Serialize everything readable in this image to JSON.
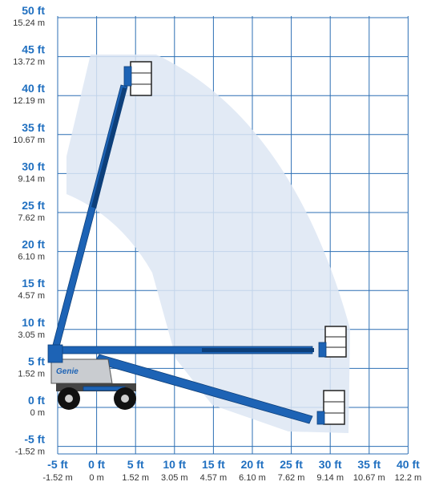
{
  "colors": {
    "grid": "#2c6fb4",
    "envelope": "#dde6f3",
    "boom": "#1d63b5",
    "boom_edge": "#0d3f7a",
    "chassis": "#c9ccd0",
    "tire": "#111111",
    "platform": "#ffffff"
  },
  "y_axis": {
    "ticks": [
      {
        "ft": "50 ft",
        "m": "15.24 m"
      },
      {
        "ft": "45 ft",
        "m": "13.72 m"
      },
      {
        "ft": "40 ft",
        "m": "12.19 m"
      },
      {
        "ft": "35 ft",
        "m": "10.67 m"
      },
      {
        "ft": "30 ft",
        "m": "9.14 m"
      },
      {
        "ft": "25 ft",
        "m": "7.62 m"
      },
      {
        "ft": "20 ft",
        "m": "6.10 m"
      },
      {
        "ft": "15 ft",
        "m": "4.57 m"
      },
      {
        "ft": "10 ft",
        "m": "3.05 m"
      },
      {
        "ft": "5 ft",
        "m": "1.52 m"
      },
      {
        "ft": "0 ft",
        "m": "0 m"
      },
      {
        "ft": "-5 ft",
        "m": "-1.52 m"
      }
    ]
  },
  "x_axis": {
    "ticks": [
      {
        "ft": "-5 ft",
        "m": "-1.52 m"
      },
      {
        "ft": "0 ft",
        "m": "0 m"
      },
      {
        "ft": "5 ft",
        "m": "1.52 m"
      },
      {
        "ft": "10 ft",
        "m": "3.05 m"
      },
      {
        "ft": "15 ft",
        "m": "4.57 m"
      },
      {
        "ft": "20 ft",
        "m": "6.10 m"
      },
      {
        "ft": "25 ft",
        "m": "7.62 m"
      },
      {
        "ft": "30 ft",
        "m": "9.14 m"
      },
      {
        "ft": "35 ft",
        "m": "10.67 m"
      },
      {
        "ft": "40 ft",
        "m": "12.2 m"
      }
    ]
  },
  "machine": {
    "brand_logo": "Genie"
  }
}
